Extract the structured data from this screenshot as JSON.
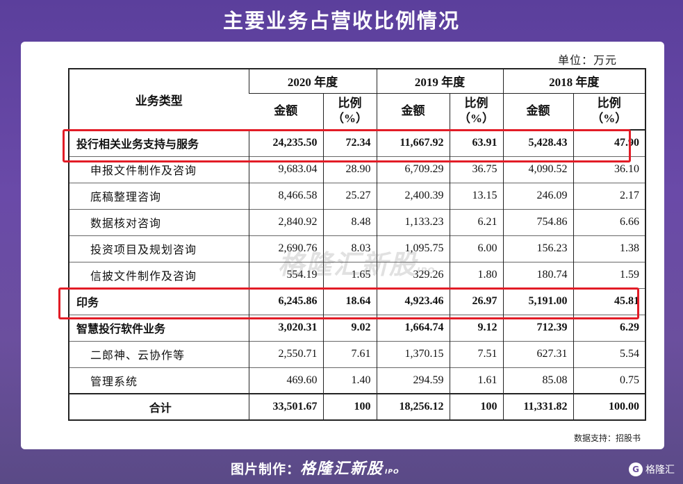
{
  "title": "主要业务占营收比例情况",
  "unit": "单位：万元",
  "table": {
    "type_header": "业务类型",
    "years": [
      "2020 年度",
      "2019 年度",
      "2018 年度"
    ],
    "amount_header": "金额",
    "ratio_header_line1": "比例",
    "ratio_header_line2": "（%）",
    "rows": [
      {
        "name": "投行相关业务支持与服务",
        "values": [
          "24,235.50",
          "72.34",
          "11,667.92",
          "63.91",
          "5,428.43",
          "47.90"
        ]
      },
      {
        "name": "申报文件制作及咨询",
        "values": [
          "9,683.04",
          "28.90",
          "6,709.29",
          "36.75",
          "4,090.52",
          "36.10"
        ]
      },
      {
        "name": "底稿整理咨询",
        "values": [
          "8,466.58",
          "25.27",
          "2,400.39",
          "13.15",
          "246.09",
          "2.17"
        ]
      },
      {
        "name": "数据核对咨询",
        "values": [
          "2,840.92",
          "8.48",
          "1,133.23",
          "6.21",
          "754.86",
          "6.66"
        ]
      },
      {
        "name": "投资项目及规划咨询",
        "values": [
          "2,690.76",
          "8.03",
          "1,095.75",
          "6.00",
          "156.23",
          "1.38"
        ]
      },
      {
        "name": "信披文件制作及咨询",
        "values": [
          "554.19",
          "1.65",
          "329.26",
          "1.80",
          "180.74",
          "1.59"
        ]
      },
      {
        "name": "印务",
        "values": [
          "6,245.86",
          "18.64",
          "4,923.46",
          "26.97",
          "5,191.00",
          "45.81"
        ]
      },
      {
        "name": "智慧投行软件业务",
        "values": [
          "3,020.31",
          "9.02",
          "1,664.74",
          "9.12",
          "712.39",
          "6.29"
        ]
      },
      {
        "name": "二郎神、云协作等",
        "values": [
          "2,550.71",
          "7.61",
          "1,370.15",
          "7.51",
          "627.31",
          "5.54"
        ]
      },
      {
        "name": "管理系统",
        "values": [
          "469.60",
          "1.40",
          "294.59",
          "1.61",
          "85.08",
          "0.75"
        ]
      },
      {
        "name": "合计",
        "values": [
          "33,501.67",
          "100",
          "18,256.12",
          "100",
          "11,331.82",
          "100.00"
        ]
      }
    ]
  },
  "watermark": {
    "text": "格隆汇新股",
    "suffix": "IPO"
  },
  "source": "数据支持：招股书",
  "footer": {
    "label": "图片制作：",
    "brand": "格隆汇新股",
    "brand_suffix": "IPO",
    "corner_logo": "G",
    "corner_text": "格隆汇"
  },
  "colors": {
    "highlight": "#e21c26",
    "background": "#6a4aa8"
  }
}
